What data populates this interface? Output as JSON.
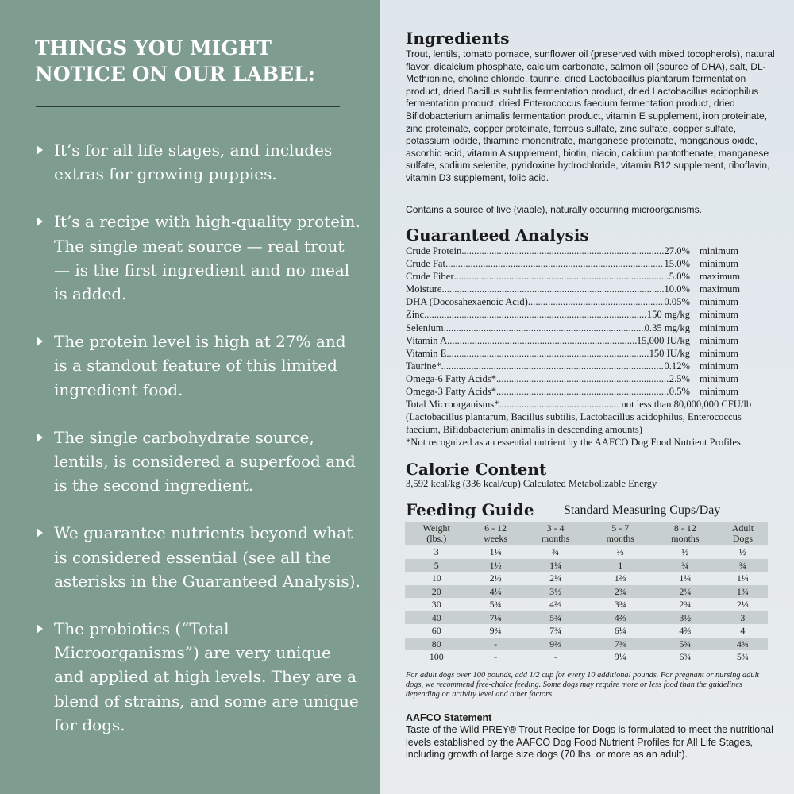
{
  "left": {
    "title": "THINGS YOU MIGHT NOTICE ON OUR LABEL:",
    "bullets": [
      "It’s for all life stages, and includes extras for growing puppies.",
      "It’s a recipe with high-quality protein. The single meat source — real trout — is the first ingredient and no meal is added.",
      "The protein level is high at 27% and is a standout feature of this limited ingredient food.",
      "The single carbohydrate source, lentils, is considered a superfood and is the second ingredient.",
      "We guarantee nutrients beyond what is considered essential (see all the asterisks in the Guaranteed Analysis).",
      "The probiotics (“Total Microorganisms”) are very unique and applied at high levels. They are a blend of strains, and some are unique for dogs."
    ]
  },
  "ingredients": {
    "title": "Ingredients",
    "text": "Trout, lentils, tomato pomace, sunflower oil (preserved with mixed tocopherols), natural flavor, dicalcium phosphate, calcium carbonate, salmon oil (source of DHA), salt, DL-Methionine, choline chloride, taurine, dried Lactobacillus plantarum fermentation product, dried Bacillus subtilis fermentation product, dried Lactobacillus acidophilus fermentation product, dried Enterococcus faecium fermentation product, dried Bifidobacterium animalis fermentation product, vitamin E supplement, iron proteinate, zinc proteinate, copper proteinate, ferrous sulfate, zinc sulfate, copper sulfate, potassium iodide, thiamine mononitrate, manganese proteinate, manganous oxide, ascorbic acid, vitamin A supplement, biotin, niacin, calcium pantothenate, manganese sulfate, sodium selenite, pyridoxine hydrochloride, vitamin B12 supplement, riboflavin, vitamin D3 supplement, folic acid.",
    "note": "Contains a source of live (viable), naturally occurring microorganisms."
  },
  "analysis": {
    "title": "Guaranteed Analysis",
    "rows": [
      {
        "name": "Crude Protein",
        "value": "27.0%",
        "qual": "minimum"
      },
      {
        "name": "Crude Fat",
        "value": "15.0%",
        "qual": "minimum"
      },
      {
        "name": "Crude Fiber",
        "value": "5.0%",
        "qual": "maximum"
      },
      {
        "name": "Moisture",
        "value": "10.0%",
        "qual": "maximum"
      },
      {
        "name": "DHA (Docosahexaenoic Acid)",
        "value": "0.05%",
        "qual": "minimum"
      },
      {
        "name": "Zinc",
        "value": "150 mg/kg",
        "qual": "minimum"
      },
      {
        "name": "Selenium",
        "value": "0.35 mg/kg",
        "qual": "minimum"
      },
      {
        "name": "Vitamin A",
        "value": "15,000 IU/kg",
        "qual": "minimum"
      },
      {
        "name": "Vitamin E",
        "value": "150 IU/kg",
        "qual": "minimum"
      },
      {
        "name": "Taurine*",
        "value": "0.12%",
        "qual": "minimum"
      },
      {
        "name": "Omega-6 Fatty Acids*",
        "value": "2.5%",
        "qual": "minimum"
      },
      {
        "name": "Omega-3 Fatty Acids*",
        "value": "0.5%",
        "qual": "minimum"
      }
    ],
    "micro_name": "Total Microorganisms*",
    "micro_value": "not less than 80,000,000 CFU/lb",
    "micro_strains": "(Lactobacillus plantarum, Bacillus subtilis, Lactobacillus acidophilus, Enterococcus faecium, Bifidobacterium animalis in descending amounts)",
    "footnote": "*Not recognized as an essential nutrient by the AAFCO Dog Food Nutrient Profiles."
  },
  "calorie": {
    "title": "Calorie Content",
    "text": "3,592 kcal/kg (336 kcal/cup) Calculated Metabolizable Energy"
  },
  "feeding": {
    "title": "Feeding Guide",
    "subtitle": "Standard Measuring Cups/Day",
    "headers": [
      [
        "Weight",
        "(lbs.)"
      ],
      [
        "6 - 12",
        "weeks"
      ],
      [
        "3 - 4",
        "months"
      ],
      [
        "5 - 7",
        "months"
      ],
      [
        "8 - 12",
        "months"
      ],
      [
        "Adult",
        "Dogs"
      ]
    ],
    "rows": [
      [
        "3",
        "1¼",
        "¾",
        "⅔",
        "½",
        "½"
      ],
      [
        "5",
        "1½",
        "1¼",
        "1",
        "¾",
        "¾"
      ],
      [
        "10",
        "2½",
        "2¼",
        "1⅔",
        "1¼",
        "1¼"
      ],
      [
        "20",
        "4¼",
        "3½",
        "2¾",
        "2¼",
        "1¾"
      ],
      [
        "30",
        "5¾",
        "4⅔",
        "3¾",
        "2¾",
        "2⅓"
      ],
      [
        "40",
        "7¼",
        "5¾",
        "4⅔",
        "3½",
        "3"
      ],
      [
        "60",
        "9¾",
        "7¾",
        "6¼",
        "4⅔",
        "4"
      ],
      [
        "80",
        "-",
        "9⅔",
        "7¾",
        "5¾",
        "4¾"
      ],
      [
        "100",
        "-",
        "-",
        "9¼",
        "6¾",
        "5¾"
      ]
    ],
    "note": "For adult dogs over 100 pounds, add 1/2 cup for every 10 additional pounds. For pregnant or nursing adult dogs, we recommend free-choice feeding. Some dogs may require more or less food than the guidelines depending on activity level and other factors."
  },
  "aafco": {
    "title": "AAFCO Statement",
    "text": "Taste of the Wild PREY® Trout Recipe for Dogs is formulated to meet the nutritional levels established by the AAFCO Dog Food Nutrient Profiles for All Life Stages, including growth of large size dogs (70 lbs. or more as an adult)."
  }
}
